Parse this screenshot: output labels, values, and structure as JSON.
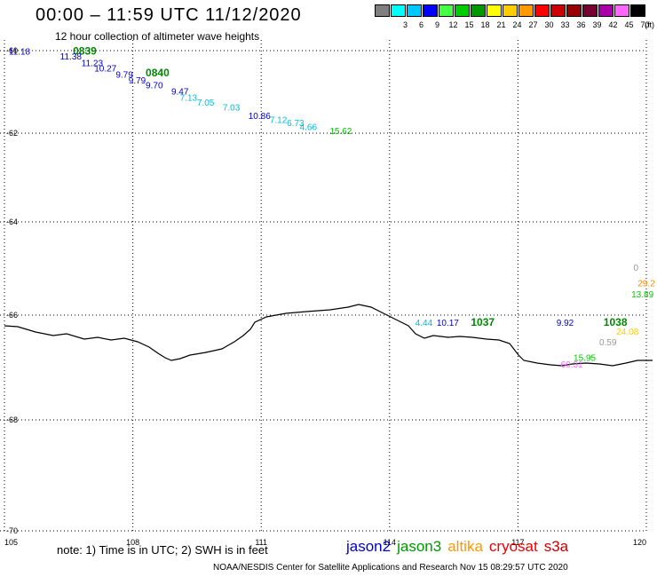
{
  "title": "00:00 – 11:59 UTC 11/12/2020",
  "subtitle": "12 hour collection of altimeter wave heights",
  "legend": {
    "unit": "(ft)",
    "bins": [
      {
        "label": "",
        "color": "#7f7f7f"
      },
      {
        "label": "3",
        "color": "#00ffff"
      },
      {
        "label": "6",
        "color": "#00c8ff"
      },
      {
        "label": "9",
        "color": "#0000ff"
      },
      {
        "label": "12",
        "color": "#44ff44"
      },
      {
        "label": "15",
        "color": "#00cc00"
      },
      {
        "label": "18",
        "color": "#009900"
      },
      {
        "label": "21",
        "color": "#ffff00"
      },
      {
        "label": "24",
        "color": "#ffcc00"
      },
      {
        "label": "27",
        "color": "#ff9900"
      },
      {
        "label": "30",
        "color": "#ff0000"
      },
      {
        "label": "33",
        "color": "#cc0000"
      },
      {
        "label": "36",
        "color": "#990000"
      },
      {
        "label": "39",
        "color": "#770033"
      },
      {
        "label": "42",
        "color": "#aa00aa"
      },
      {
        "label": "45",
        "color": "#ff66ff"
      },
      {
        "label": "70",
        "color": "#000000"
      }
    ]
  },
  "axes": {
    "lon_ticks": [
      "105",
      "108",
      "111",
      "114",
      "117",
      "120"
    ],
    "lat_ticks": [
      "-60",
      "-62",
      "-64",
      "-66",
      "-68",
      "-70"
    ]
  },
  "observations": [
    {
      "text": "11.18",
      "color": "#0000cc",
      "lon": 105.1,
      "lat": -60.1
    },
    {
      "text": "0839",
      "color": "#008800",
      "lon": 106.6,
      "lat": -60.1,
      "time": true
    },
    {
      "text": "11.38",
      "color": "#0000cc",
      "lon": 106.3,
      "lat": -60.21
    },
    {
      "text": "11.23",
      "color": "#0000cc",
      "lon": 106.8,
      "lat": -60.38
    },
    {
      "text": "10.27",
      "color": "#0000cc",
      "lon": 107.1,
      "lat": -60.51
    },
    {
      "text": "9.79",
      "color": "#0000cc",
      "lon": 107.6,
      "lat": -60.66
    },
    {
      "text": "0840",
      "color": "#008800",
      "lon": 108.3,
      "lat": -60.62,
      "time": true
    },
    {
      "text": "9.79",
      "color": "#0000cc",
      "lon": 107.9,
      "lat": -60.8
    },
    {
      "text": "9.70",
      "color": "#0000cc",
      "lon": 108.3,
      "lat": -60.91
    },
    {
      "text": "9.47",
      "color": "#0000cc",
      "lon": 108.9,
      "lat": -61.06
    },
    {
      "text": "7.13",
      "color": "#00bbdd",
      "lon": 109.1,
      "lat": -61.22
    },
    {
      "text": "7.05",
      "color": "#00bbdd",
      "lon": 109.5,
      "lat": -61.33
    },
    {
      "text": "7.03",
      "color": "#00bbdd",
      "lon": 110.1,
      "lat": -61.45
    },
    {
      "text": "10.86",
      "color": "#0000cc",
      "lon": 110.7,
      "lat": -61.66
    },
    {
      "text": "7.12",
      "color": "#00bbdd",
      "lon": 111.2,
      "lat": -61.75
    },
    {
      "text": "6.73",
      "color": "#00bbdd",
      "lon": 111.6,
      "lat": -61.83
    },
    {
      "text": "4.66",
      "color": "#00bbdd",
      "lon": 111.9,
      "lat": -61.93
    },
    {
      "text": "15.62",
      "color": "#00bb00",
      "lon": 112.6,
      "lat": -62.02
    },
    {
      "text": "0",
      "color": "#999999",
      "lon": 119.7,
      "lat": -65.05
    },
    {
      "text": "29.2",
      "color": "#ff8800",
      "lon": 119.8,
      "lat": -65.38
    },
    {
      "text": "13.89",
      "color": "#00cc00",
      "lon": 119.65,
      "lat": -65.62
    },
    {
      "text": "4.44",
      "color": "#00bbdd",
      "lon": 114.6,
      "lat": -66.2
    },
    {
      "text": "10.17",
      "color": "#0000cc",
      "lon": 115.1,
      "lat": -66.2
    },
    {
      "text": "1037",
      "color": "#008800",
      "lon": 115.9,
      "lat": -66.2,
      "time": true
    },
    {
      "text": "9.92",
      "color": "#0000cc",
      "lon": 117.9,
      "lat": -66.2
    },
    {
      "text": "1038",
      "color": "#008800",
      "lon": 119.0,
      "lat": -66.2,
      "time": true
    },
    {
      "text": "24.08",
      "color": "#ffcc00",
      "lon": 119.3,
      "lat": -66.37
    },
    {
      "text": "0.59",
      "color": "#999999",
      "lon": 118.9,
      "lat": -66.58
    },
    {
      "text": "15.95",
      "color": "#00cc00",
      "lon": 118.3,
      "lat": -66.87
    },
    {
      "text": "60.31",
      "color": "#ff66ff",
      "lon": 118.0,
      "lat": -67.0
    }
  ],
  "note": "note: 1) Time is in UTC; 2) SWH is in feet",
  "satellites": [
    {
      "name": "jason2",
      "color": "#0000cc"
    },
    {
      "name": "jason3",
      "color": "#009900"
    },
    {
      "name": "altika",
      "color": "#ff9900"
    },
    {
      "name": "cryosat",
      "color": "#ee0000"
    },
    {
      "name": "s3a",
      "color": "#cc0000"
    }
  ],
  "credit": "NOAA/NESDIS Center for Satellite Applications and Research    Nov 15 08:29:57 UTC 2020"
}
